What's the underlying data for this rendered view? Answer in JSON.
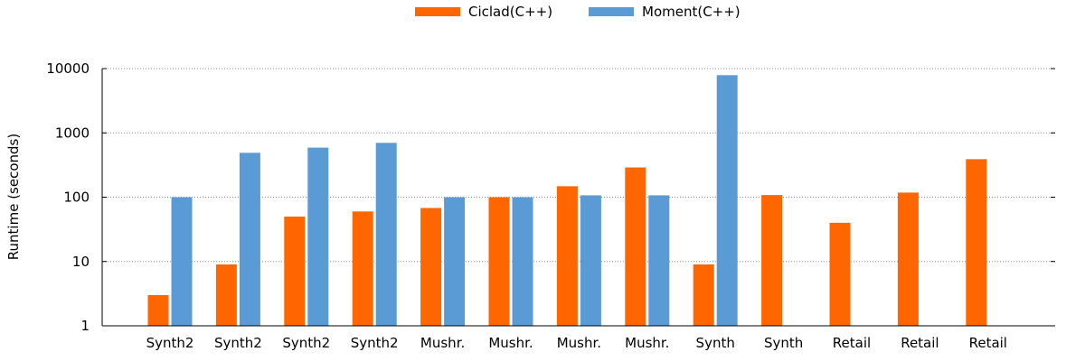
{
  "chart_data": {
    "type": "bar",
    "yscale": "log",
    "ylim": [
      1,
      10000
    ],
    "ylabel": "Runtime (seconds)",
    "xlabel": "",
    "yticks": [
      1,
      10,
      100,
      1000,
      10000
    ],
    "ytick_labels": [
      "1",
      "10",
      "100",
      "1000",
      "10000"
    ],
    "grid": "horizontal dotted",
    "legend_position": "top-center",
    "categories": [
      "Synth2",
      "Synth2",
      "Synth2",
      "Synth2",
      "Mushr.",
      "Mushr.",
      "Mushr.",
      "Mushr.",
      "Synth",
      "Synth",
      "Retail",
      "Retail",
      "Retail"
    ],
    "series": [
      {
        "name": "Ciclad(C++)",
        "color": "#ff6600",
        "values": [
          3,
          9,
          50,
          60,
          68,
          100,
          148,
          290,
          9,
          108,
          40,
          118,
          390
        ]
      },
      {
        "name": "Moment(C++)",
        "color": "#5b9bd5",
        "values": [
          100,
          490,
          590,
          700,
          100,
          100,
          107,
          107,
          7900,
          null,
          null,
          null,
          null
        ]
      }
    ]
  }
}
